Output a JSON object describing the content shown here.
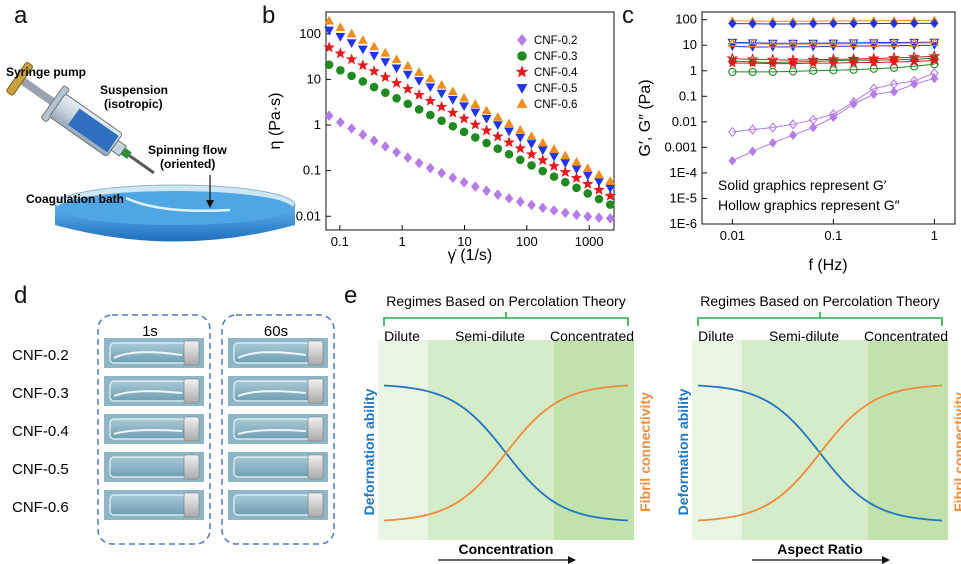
{
  "panels": {
    "a": "a",
    "b": "b",
    "c": "c",
    "d": "d",
    "e": "e"
  },
  "panel_a": {
    "syringe_pump": "Syringe pump",
    "suspension_line1": "Suspension",
    "suspension_line2": "(isotropic)",
    "spinning_line1": "Spinning flow",
    "spinning_line2": "(oriented)",
    "bath": "Coagulation bath",
    "colors": {
      "bath": "#3a8fd6",
      "suspension": "#2f6fc0",
      "needle": "#2e8b3a"
    }
  },
  "chart_data": [
    {
      "type": "scatter",
      "panel": "b",
      "xlabel": "γ̇ (1/s)",
      "ylabel": "η (Pa·s)",
      "x_scale": "log",
      "y_scale": "log",
      "xlim": [
        0.06,
        2500
      ],
      "ylim": [
        0.005,
        300
      ],
      "x_ticks": [
        {
          "v": 0.1,
          "label": "0.1"
        },
        {
          "v": 1,
          "label": "1"
        },
        {
          "v": 10,
          "label": "10"
        },
        {
          "v": 100,
          "label": "100"
        },
        {
          "v": 1000,
          "label": "1000"
        }
      ],
      "y_ticks": [
        {
          "v": 0.01,
          "label": "0.01"
        },
        {
          "v": 0.1,
          "label": "0.1"
        },
        {
          "v": 1,
          "label": "1"
        },
        {
          "v": 10,
          "label": "10"
        },
        {
          "v": 100,
          "label": "100"
        }
      ],
      "legend_position": "top-right",
      "series": [
        {
          "name": "CNF-0.2",
          "marker": "diamond",
          "color": "#b57be8",
          "start": 1.6,
          "end": 0.009,
          "mode": "b02"
        },
        {
          "name": "CNF-0.3",
          "marker": "circle",
          "color": "#1f8a1f",
          "start": 21,
          "end": 0.018,
          "mode": "pow"
        },
        {
          "name": "CNF-0.4",
          "marker": "star",
          "color": "#e8191c",
          "start": 50,
          "end": 0.028,
          "mode": "pow"
        },
        {
          "name": "CNF-0.5",
          "marker": "triangle-down",
          "color": "#2233e8",
          "start": 120,
          "end": 0.042,
          "mode": "pow"
        },
        {
          "name": "CNF-0.6",
          "marker": "triangle-up",
          "color": "#f08c1a",
          "start": 190,
          "end": 0.058,
          "mode": "pow"
        }
      ]
    },
    {
      "type": "scatter",
      "panel": "c",
      "xlabel": "f (Hz)",
      "ylabel": "G′, G″ (Pa)",
      "x_scale": "log",
      "y_scale": "log",
      "xlim": [
        0.005,
        1.6
      ],
      "ylim": [
        1e-06,
        200
      ],
      "x_ticks": [
        {
          "v": 0.01,
          "label": "0.01"
        },
        {
          "v": 0.1,
          "label": "0.1"
        },
        {
          "v": 1,
          "label": "1"
        }
      ],
      "y_ticks": [
        {
          "v": 100,
          "label": "100"
        },
        {
          "v": 10,
          "label": "10"
        },
        {
          "v": 1,
          "label": "1"
        },
        {
          "v": 0.1,
          "label": "0.1"
        },
        {
          "v": 0.01,
          "label": "0.01"
        },
        {
          "v": 0.001,
          "label": "0.001"
        },
        {
          "v": 0.0001,
          "label": "1E-4"
        },
        {
          "v": 1e-05,
          "label": "1E-5"
        },
        {
          "v": 1e-06,
          "label": "1E-6"
        }
      ],
      "annotations": [
        "Solid graphics represent G′",
        "Hollow graphics represent G″"
      ],
      "series": [
        {
          "name": "CNF-0.2 G′",
          "marker": "diamond",
          "filled": true,
          "color": "#b57be8",
          "values": [
            0.0003,
            0.0007,
            0.0015,
            0.003,
            0.006,
            0.015,
            0.05,
            0.12,
            0.15,
            0.3,
            0.5
          ]
        },
        {
          "name": "CNF-0.2 G″",
          "marker": "diamond",
          "filled": false,
          "color": "#b57be8",
          "values": [
            0.004,
            0.005,
            0.006,
            0.008,
            0.012,
            0.02,
            0.06,
            0.2,
            0.3,
            0.4,
            0.8
          ]
        },
        {
          "name": "CNF-0.3 G′",
          "marker": "circle",
          "filled": true,
          "color": "#1f8a1f",
          "values": [
            2.4,
            2.2,
            2.1,
            2.2,
            2.3,
            2.5,
            2.6,
            2.6,
            2.7,
            2.8,
            3.1
          ]
        },
        {
          "name": "CNF-0.3 G″",
          "marker": "circle",
          "filled": false,
          "color": "#1f8a1f",
          "values": [
            0.9,
            0.9,
            0.9,
            0.95,
            1.0,
            1.05,
            1.1,
            1.2,
            1.3,
            1.5,
            1.8
          ]
        },
        {
          "name": "CNF-0.4 G′",
          "marker": "star",
          "filled": true,
          "color": "#e8191c",
          "values": [
            2.0,
            2.0,
            1.9,
            1.9,
            2.0,
            2.0,
            2.1,
            2.1,
            2.2,
            2.3,
            2.5
          ]
        },
        {
          "name": "CNF-0.4 G″",
          "marker": "star",
          "filled": false,
          "color": "#e8191c",
          "values": [
            3.0,
            2.8,
            2.7,
            2.6,
            2.7,
            2.8,
            2.9,
            3.0,
            3.2,
            3.4,
            3.7
          ]
        },
        {
          "name": "CNF-0.5 G′",
          "marker": "triangle-down",
          "filled": true,
          "color": "#2233e8",
          "values": [
            9,
            8.5,
            8.5,
            8.6,
            8.8,
            9,
            9.2,
            9.4,
            9.6,
            9.8,
            10
          ]
        },
        {
          "name": "CNF-0.5 G″",
          "marker": "triangle-down",
          "filled": false,
          "color": "#2233e8",
          "values": [
            13,
            12.5,
            12,
            12,
            12,
            12.2,
            12.4,
            12.6,
            12.8,
            13,
            13.2
          ]
        },
        {
          "name": "CNF-0.6 G′",
          "marker": "triangle-up",
          "filled": true,
          "color": "#f08c1a",
          "values": [
            90,
            88,
            87,
            87,
            88,
            89,
            90,
            91,
            92,
            93,
            95
          ]
        },
        {
          "name": "CNF-0.6 G″",
          "marker": "triangle-up",
          "filled": false,
          "color": "#f08c1a",
          "values": [
            12,
            11.5,
            11,
            11,
            11,
            11.2,
            11.4,
            11.6,
            11.8,
            12,
            12.5
          ]
        },
        {
          "name": "blue G′ high",
          "marker": "diamond",
          "filled": true,
          "color": "#2233e8",
          "values": [
            70,
            69,
            68,
            68,
            69,
            70,
            70,
            71,
            71,
            72,
            72
          ]
        }
      ]
    }
  ],
  "panel_d": {
    "label_1s": "1s",
    "label_60s": "60s",
    "rows": [
      "CNF-0.2",
      "CNF-0.3",
      "CNF-0.4",
      "CNF-0.5",
      "CNF-0.6"
    ],
    "colors": {
      "box_border": "#4a78c8",
      "vial_bg": "#8fb6c6"
    }
  },
  "panel_e": {
    "title": "Regimes Based on Percolation Theory",
    "regimes": [
      "Dilute",
      "Semi-dilute",
      "Concentrated"
    ],
    "left_axis": "Deformation ability",
    "right_axis": "Fibril connectivity",
    "plots": [
      {
        "xlabel": "Concentration",
        "right_axis_text": "Fibril connectivity"
      },
      {
        "xlabel": "Aspect Ratio",
        "right_axis_text": "Fibril connectivity"
      }
    ],
    "colors": {
      "blue_curve": "#1f77c4",
      "orange_curve": "#f08c3a",
      "bracket": "#2aa84a",
      "shade_light": "#eaf5e3",
      "shade_mid": "#d6ecc8",
      "shade_dark": "#c2e2ad"
    }
  }
}
